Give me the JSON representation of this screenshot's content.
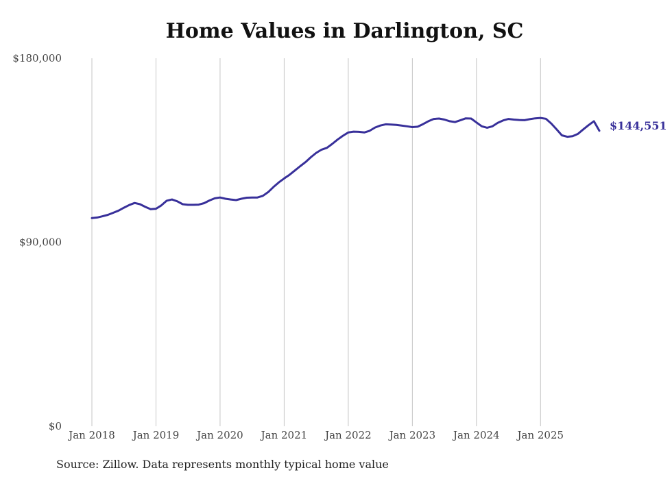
{
  "chart_data": {
    "type": "line",
    "title": "Home Values in Darlington, SC",
    "xlabel": "",
    "ylabel": "",
    "ylim": [
      0,
      180000
    ],
    "y_ticks": [
      {
        "value": 0,
        "label": "$0"
      },
      {
        "value": 90000,
        "label": "$90,000"
      },
      {
        "value": 180000,
        "label": "$180,000"
      }
    ],
    "x_ticks": [
      {
        "value": 2018,
        "label": "Jan 2018"
      },
      {
        "value": 2019,
        "label": "Jan 2019"
      },
      {
        "value": 2020,
        "label": "Jan 2020"
      },
      {
        "value": 2021,
        "label": "Jan 2021"
      },
      {
        "value": 2022,
        "label": "Jan 2022"
      },
      {
        "value": 2023,
        "label": "Jan 2023"
      },
      {
        "value": 2024,
        "label": "Jan 2024"
      },
      {
        "value": 2025,
        "label": "Jan 2025"
      }
    ],
    "xlim": [
      2018,
      2025.917
    ],
    "grid": "vertical",
    "line_color": "#38309a",
    "series": [
      {
        "name": "Typical home value",
        "x": [
          2018.0,
          2018.083,
          2018.167,
          2018.25,
          2018.333,
          2018.417,
          2018.5,
          2018.583,
          2018.667,
          2018.75,
          2018.833,
          2018.917,
          2019.0,
          2019.083,
          2019.167,
          2019.25,
          2019.333,
          2019.417,
          2019.5,
          2019.583,
          2019.667,
          2019.75,
          2019.833,
          2019.917,
          2020.0,
          2020.083,
          2020.167,
          2020.25,
          2020.333,
          2020.417,
          2020.5,
          2020.583,
          2020.667,
          2020.75,
          2020.833,
          2020.917,
          2021.0,
          2021.083,
          2021.167,
          2021.25,
          2021.333,
          2021.417,
          2021.5,
          2021.583,
          2021.667,
          2021.75,
          2021.833,
          2021.917,
          2022.0,
          2022.083,
          2022.167,
          2022.25,
          2022.333,
          2022.417,
          2022.5,
          2022.583,
          2022.667,
          2022.75,
          2022.833,
          2022.917,
          2023.0,
          2023.083,
          2023.167,
          2023.25,
          2023.333,
          2023.417,
          2023.5,
          2023.583,
          2023.667,
          2023.75,
          2023.833,
          2023.917,
          2024.0,
          2024.083,
          2024.167,
          2024.25,
          2024.333,
          2024.417,
          2024.5,
          2024.583,
          2024.667,
          2024.75,
          2024.833,
          2024.917,
          2025.0,
          2025.083,
          2025.167,
          2025.25,
          2025.333,
          2025.417,
          2025.5,
          2025.583,
          2025.667,
          2025.75,
          2025.833,
          2025.917
        ],
        "values": [
          101800,
          102100,
          102700,
          103400,
          104400,
          105500,
          106900,
          108200,
          109200,
          108600,
          107300,
          106200,
          106400,
          108000,
          110300,
          110900,
          110000,
          108600,
          108300,
          108300,
          108400,
          109100,
          110400,
          111500,
          111900,
          111300,
          110900,
          110600,
          111300,
          111800,
          111900,
          111900,
          112700,
          114500,
          117000,
          119300,
          121200,
          123000,
          125100,
          127200,
          129200,
          131600,
          133700,
          135300,
          136200,
          138100,
          140200,
          142100,
          143700,
          144100,
          144000,
          143700,
          144500,
          146100,
          147100,
          147700,
          147600,
          147400,
          147100,
          146700,
          146300,
          146500,
          147800,
          149200,
          150300,
          150500,
          150000,
          149200,
          148800,
          149700,
          150600,
          150500,
          148600,
          146700,
          146000,
          146700,
          148400,
          149600,
          150300,
          150000,
          149800,
          149700,
          150200,
          150600,
          150800,
          150400,
          148100,
          145200,
          142300,
          141600,
          141900,
          143000,
          145200,
          147300,
          149200,
          144551
        ]
      }
    ],
    "end_label": "$144,551"
  },
  "source_note": "Source: Zillow. Data represents monthly typical home value"
}
